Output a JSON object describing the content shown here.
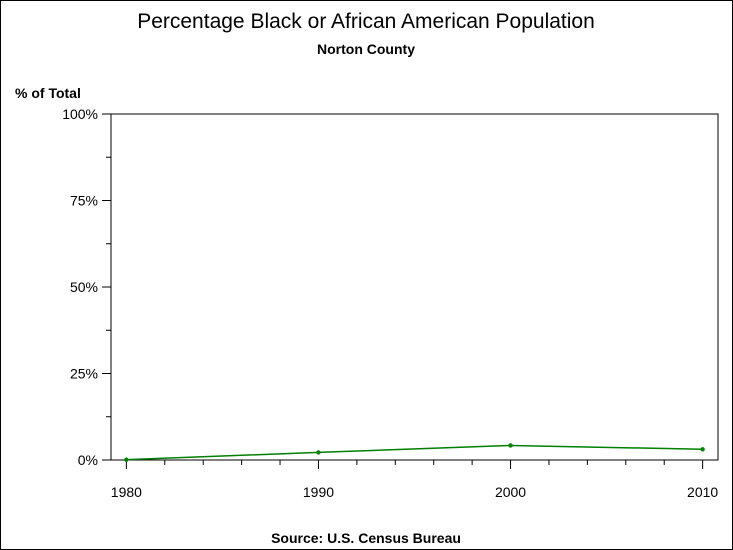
{
  "chart_data": {
    "type": "line",
    "title": "Percentage Black or African American Population",
    "subtitle": "Norton County",
    "ylabel": "% of Total",
    "xlabel": "",
    "footnote": "Source: U.S. Census Bureau",
    "x": [
      1980,
      1990,
      2000,
      2010
    ],
    "series": [
      {
        "values": [
          0.1,
          2.2,
          4.2,
          3.1
        ],
        "color": "#008000"
      }
    ],
    "xlim": [
      1979.2,
      2010.8
    ],
    "ylim": [
      0,
      100
    ],
    "y_ticks": [
      0,
      25,
      50,
      75,
      100
    ],
    "y_tick_labels": [
      "0%",
      "25%",
      "50%",
      "75%",
      "100%"
    ],
    "x_ticks": [
      1980,
      1990,
      2000,
      2010
    ],
    "x_tick_labels": [
      "1980",
      "1990",
      "2000",
      "2010"
    ],
    "grid": false,
    "legend": "none"
  }
}
